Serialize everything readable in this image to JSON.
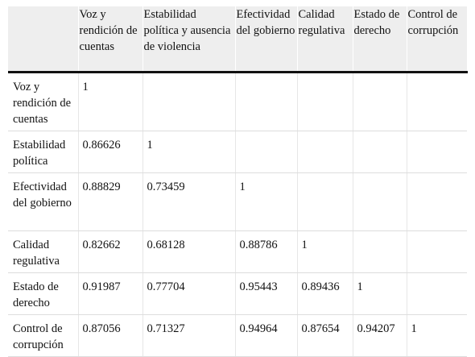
{
  "table": {
    "columns": [
      "",
      "Voz y rendición de cuentas",
      "Estabilidad política y ausencia de violencia",
      "Efectividad del gobierno",
      "Calidad regulativa",
      "Estado de derecho",
      "Control de corrupción"
    ],
    "rows": [
      {
        "label": "Voz y rendición de cuentas",
        "values": [
          "1",
          "",
          "",
          "",
          "",
          ""
        ]
      },
      {
        "label": "Estabilidad política",
        "values": [
          "0.86626",
          "1",
          "",
          "",
          "",
          ""
        ]
      },
      {
        "label": "Efectividad del gobierno",
        "values": [
          "0.88829",
          "0.73459",
          "1",
          "",
          "",
          ""
        ]
      },
      {
        "label": "Calidad regulativa",
        "values": [
          "0.82662",
          "0.68128",
          "0.88786",
          "1",
          "",
          ""
        ]
      },
      {
        "label": "Estado de derecho",
        "values": [
          "0.91987",
          "0.77704",
          "0.95443",
          "0.89436",
          "1",
          ""
        ]
      },
      {
        "label": "Control de corrupción",
        "values": [
          "0.87056",
          "0.71327",
          "0.94964",
          "0.87654",
          "0.94207",
          "1"
        ]
      }
    ]
  }
}
